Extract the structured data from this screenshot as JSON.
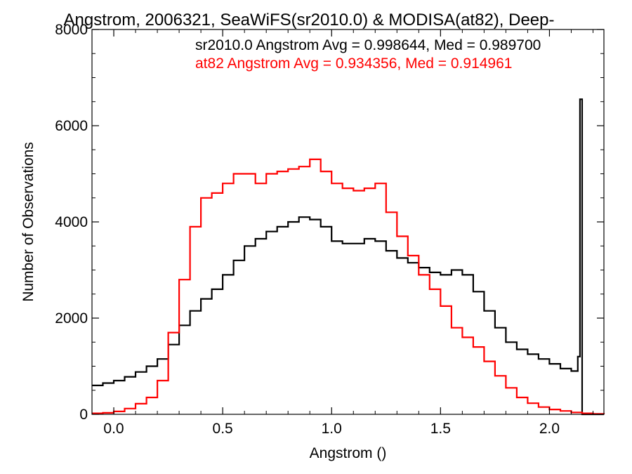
{
  "chart_data": {
    "type": "histogram",
    "title": "Angstrom, 2006321, SeaWiFS(sr2010.0) & MODISA(at82), Deep-",
    "xlabel": "Angstrom ()",
    "ylabel": "Number of Observations",
    "xlim": [
      -0.1,
      2.25
    ],
    "ylim": [
      0,
      8000
    ],
    "x_ticks": [
      0.0,
      0.5,
      1.0,
      1.5,
      2.0
    ],
    "x_tick_labels": [
      "0.0",
      "0.5",
      "1.0",
      "1.5",
      "2.0"
    ],
    "y_ticks": [
      0,
      2000,
      4000,
      6000,
      8000
    ],
    "y_tick_labels": [
      "0",
      "2000",
      "4000",
      "6000",
      "8000"
    ],
    "grid": false,
    "annotations": [
      {
        "text": "sr2010.0 Angstrom Avg = 0.998644, Med = 0.989700",
        "color": "#000000"
      },
      {
        "text": "at82 Angstrom Avg = 0.934356, Med = 0.914961",
        "color": "#ff0000"
      }
    ],
    "series": [
      {
        "color": "#000000",
        "x": [
          -0.1,
          -0.05,
          0.0,
          0.05,
          0.1,
          0.15,
          0.2,
          0.25,
          0.3,
          0.35,
          0.4,
          0.45,
          0.5,
          0.55,
          0.6,
          0.65,
          0.7,
          0.75,
          0.8,
          0.85,
          0.9,
          0.95,
          1.0,
          1.05,
          1.1,
          1.15,
          1.2,
          1.25,
          1.3,
          1.35,
          1.4,
          1.45,
          1.5,
          1.55,
          1.6,
          1.65,
          1.7,
          1.75,
          1.8,
          1.85,
          1.9,
          1.95,
          2.0,
          2.05,
          2.1,
          2.13,
          2.14,
          2.15,
          2.16,
          2.25
        ],
        "values": [
          600,
          650,
          700,
          780,
          880,
          1000,
          1150,
          1450,
          1850,
          2150,
          2400,
          2600,
          2900,
          3200,
          3500,
          3650,
          3800,
          3900,
          4000,
          4100,
          4050,
          3900,
          3600,
          3550,
          3550,
          3650,
          3600,
          3400,
          3250,
          3150,
          3050,
          2950,
          2900,
          3000,
          2900,
          2550,
          2150,
          1800,
          1500,
          1350,
          1250,
          1150,
          1050,
          950,
          900,
          1200,
          6550,
          0,
          0,
          0
        ]
      },
      {
        "color": "#ff0000",
        "x": [
          -0.1,
          -0.05,
          0.0,
          0.05,
          0.1,
          0.15,
          0.2,
          0.25,
          0.3,
          0.35,
          0.4,
          0.45,
          0.5,
          0.55,
          0.6,
          0.65,
          0.7,
          0.75,
          0.8,
          0.85,
          0.9,
          0.95,
          1.0,
          1.05,
          1.1,
          1.15,
          1.2,
          1.25,
          1.3,
          1.35,
          1.4,
          1.45,
          1.5,
          1.55,
          1.6,
          1.65,
          1.7,
          1.75,
          1.8,
          1.85,
          1.9,
          1.95,
          2.0,
          2.05,
          2.1,
          2.15,
          2.2,
          2.25
        ],
        "values": [
          20,
          30,
          60,
          120,
          220,
          350,
          700,
          1700,
          2800,
          3900,
          4500,
          4600,
          4800,
          5000,
          5000,
          4800,
          5000,
          5050,
          5100,
          5150,
          5300,
          5050,
          4800,
          4700,
          4650,
          4700,
          4800,
          4200,
          3700,
          3300,
          2900,
          2600,
          2250,
          1800,
          1600,
          1400,
          1100,
          800,
          550,
          350,
          230,
          150,
          100,
          70,
          40,
          20,
          10,
          0
        ]
      }
    ]
  }
}
